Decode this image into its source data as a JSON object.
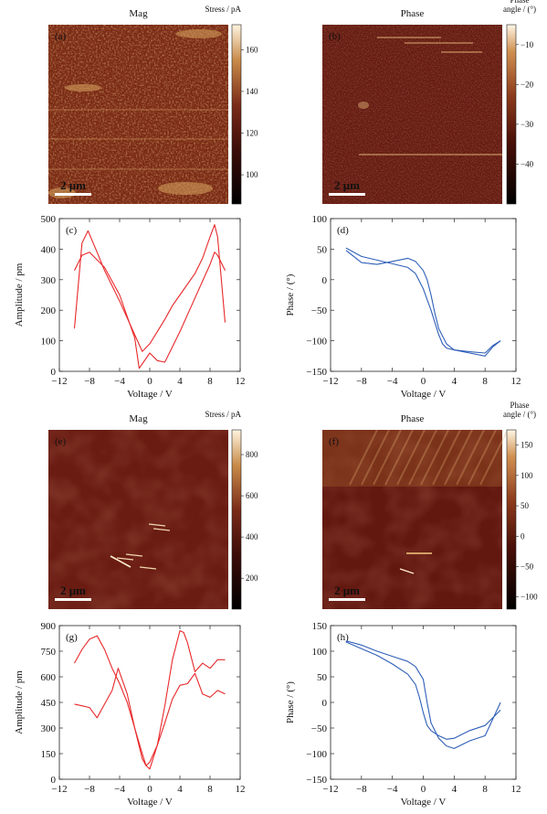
{
  "maps": [
    {
      "panel": "(a)",
      "title": "Mag",
      "cbar_title": [
        "Stress / pA"
      ],
      "cbar_ticks": [
        "160",
        "140",
        "120",
        "100"
      ],
      "cbar_values": [
        160,
        140,
        120,
        100
      ],
      "cbar_range": [
        86,
        172
      ],
      "scalebar": "2 μm",
      "palette": "copper-mag",
      "texture": "noisy-mag"
    },
    {
      "panel": "(b)",
      "title": "Phase",
      "cbar_title": [
        "Phase",
        "angle / (°)"
      ],
      "cbar_ticks": [
        "−10",
        "−20",
        "−30",
        "−40"
      ],
      "cbar_values": [
        -10,
        -20,
        -30,
        -40
      ],
      "cbar_range": [
        -50,
        -5
      ],
      "scalebar": "2 μm",
      "palette": "copper-phase",
      "texture": "uniform-phase"
    },
    {
      "panel": "(e)",
      "title": "Mag",
      "cbar_title": [
        "Stress / pA"
      ],
      "cbar_ticks": [
        "800",
        "600",
        "400",
        "200"
      ],
      "cbar_values": [
        800,
        600,
        400,
        200
      ],
      "cbar_range": [
        50,
        920
      ],
      "scalebar": "2 μm",
      "palette": "copper-mag",
      "texture": "smooth-dark"
    },
    {
      "panel": "(f)",
      "title": "Phase",
      "cbar_title": [
        "Phase",
        "angle / (°)"
      ],
      "cbar_ticks": [
        "150",
        "100",
        "50",
        "0",
        "−50",
        "−100"
      ],
      "cbar_values": [
        150,
        100,
        50,
        0,
        -50,
        -100
      ],
      "cbar_range": [
        -120,
        175
      ],
      "scalebar": "2 μm",
      "palette": "copper-phase",
      "texture": "smooth-streaks"
    }
  ],
  "chart_data": [
    {
      "panel": "(c)",
      "type": "line",
      "xlabel": "Voltage / V",
      "ylabel": "Amplitude / pm",
      "xlim": [
        -12,
        12
      ],
      "ylim": [
        0,
        500
      ],
      "xticks": [
        -12,
        -8,
        -4,
        0,
        4,
        8,
        12
      ],
      "yticks": [
        0,
        100,
        200,
        300,
        400,
        500
      ],
      "color": "#e8282a",
      "series": [
        {
          "x": [
            -10,
            -9,
            -8.2,
            -7,
            -6,
            -4,
            -2,
            -1,
            0,
            1,
            2,
            3,
            4,
            6,
            7,
            8,
            8.6,
            9,
            10
          ],
          "y": [
            140,
            420,
            460,
            390,
            330,
            230,
            120,
            65,
            90,
            130,
            170,
            215,
            250,
            320,
            370,
            440,
            480,
            440,
            160
          ]
        },
        {
          "x": [
            -10,
            -9,
            -8,
            -6,
            -4,
            -2,
            -1.4,
            0,
            1,
            2,
            3,
            4,
            6,
            8,
            8.6,
            9,
            10
          ],
          "y": [
            330,
            380,
            390,
            340,
            250,
            110,
            10,
            60,
            35,
            30,
            80,
            130,
            240,
            350,
            390,
            380,
            330
          ]
        }
      ]
    },
    {
      "panel": "(d)",
      "type": "line",
      "xlabel": "Voltage / V",
      "ylabel": "Phase / (°)",
      "xlim": [
        -12,
        12
      ],
      "ylim": [
        -150,
        100
      ],
      "xticks": [
        -12,
        -8,
        -4,
        0,
        4,
        8,
        12
      ],
      "yticks": [
        -150,
        -100,
        -50,
        0,
        50,
        100
      ],
      "color": "#2f5fb8",
      "series": [
        {
          "x": [
            -10,
            -8,
            -6,
            -4,
            -2,
            -1,
            0,
            0.5,
            1,
            1.5,
            2,
            3,
            4,
            6,
            8,
            9,
            10
          ],
          "y": [
            48,
            28,
            25,
            30,
            35,
            30,
            15,
            0,
            -25,
            -55,
            -80,
            -105,
            -115,
            -118,
            -120,
            -108,
            -100
          ]
        },
        {
          "x": [
            -10,
            -8,
            -6,
            -4,
            -2,
            -1,
            0,
            1,
            2,
            2.5,
            3,
            4,
            6,
            8,
            9,
            10
          ],
          "y": [
            52,
            38,
            32,
            26,
            20,
            10,
            -15,
            -50,
            -90,
            -105,
            -112,
            -115,
            -120,
            -125,
            -110,
            -100
          ]
        }
      ]
    },
    {
      "panel": "(g)",
      "type": "line",
      "xlabel": "Voltage / V",
      "ylabel": "Amplitude / pm",
      "xlim": [
        -12,
        12
      ],
      "ylim": [
        0,
        900
      ],
      "xticks": [
        -12,
        -8,
        -4,
        0,
        4,
        8,
        12
      ],
      "yticks": [
        0,
        150,
        300,
        450,
        600,
        750,
        900
      ],
      "color": "#e8282a",
      "series": [
        {
          "x": [
            -10,
            -9,
            -8,
            -7,
            -6,
            -5,
            -4,
            -3,
            -2,
            -1,
            -0.5,
            0,
            1,
            2,
            3,
            4,
            4.5,
            5,
            6,
            7,
            8,
            9,
            10
          ],
          "y": [
            680,
            760,
            820,
            840,
            760,
            650,
            560,
            450,
            300,
            120,
            80,
            60,
            200,
            430,
            700,
            870,
            860,
            800,
            630,
            680,
            650,
            700,
            700
          ]
        },
        {
          "x": [
            -10,
            -9,
            -8,
            -7,
            -6,
            -5,
            -4.2,
            -3,
            -2,
            -1,
            -0.5,
            0,
            1,
            2,
            3,
            4,
            5,
            6,
            7,
            8,
            9,
            10
          ],
          "y": [
            440,
            430,
            420,
            360,
            440,
            520,
            650,
            500,
            300,
            150,
            80,
            100,
            200,
            330,
            470,
            550,
            560,
            620,
            500,
            480,
            520,
            500
          ]
        }
      ]
    },
    {
      "panel": "(h)",
      "type": "line",
      "xlabel": "Voltage / V",
      "ylabel": "Phase / (°)",
      "xlim": [
        -12,
        12
      ],
      "ylim": [
        -150,
        150
      ],
      "xticks": [
        -12,
        -8,
        -4,
        0,
        4,
        8,
        12
      ],
      "yticks": [
        -150,
        -100,
        -50,
        0,
        50,
        100,
        150
      ],
      "color": "#2f5fb8",
      "series": [
        {
          "x": [
            -10,
            -8,
            -6,
            -4,
            -2,
            -1,
            -0.5,
            0,
            0.5,
            1,
            2,
            3,
            4,
            6,
            8,
            10
          ],
          "y": [
            118,
            105,
            92,
            75,
            55,
            35,
            10,
            -20,
            -45,
            -55,
            -65,
            -72,
            -70,
            -55,
            -45,
            -15
          ]
        },
        {
          "x": [
            -10,
            -8,
            -6,
            -4,
            -2,
            -1,
            0,
            0.5,
            1,
            2,
            3,
            4,
            6,
            8,
            10
          ],
          "y": [
            120,
            112,
            100,
            90,
            80,
            70,
            45,
            0,
            -40,
            -70,
            -85,
            -90,
            -75,
            -65,
            0
          ]
        }
      ]
    }
  ]
}
